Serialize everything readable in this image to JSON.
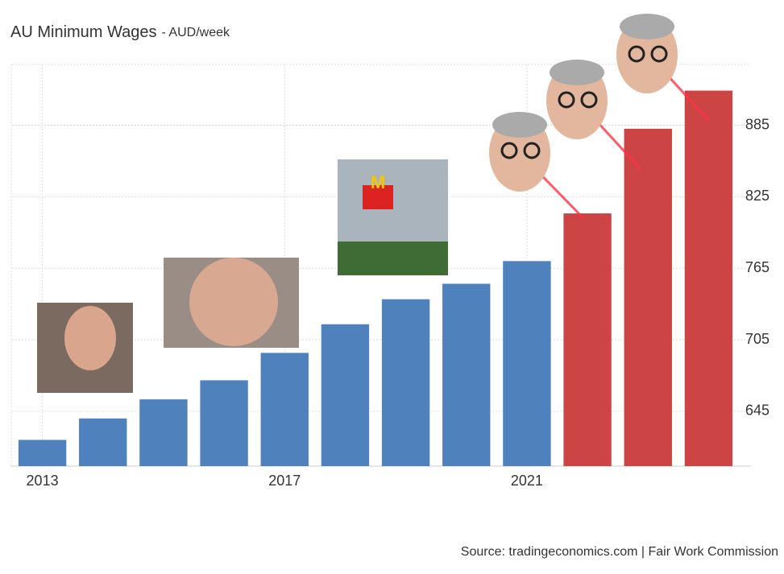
{
  "chart_data": {
    "type": "bar",
    "title": "AU Minimum Wages",
    "subtitle": "- AUD/week",
    "source": "Source: tradingeconomics.com | Fair Work Commission",
    "categories": [
      "2013",
      null,
      null,
      null,
      "2017",
      null,
      null,
      null,
      "2021",
      null,
      null,
      null
    ],
    "values": [
      621,
      639,
      655,
      671,
      694,
      718,
      739,
      752,
      771,
      811,
      882,
      914
    ],
    "colors": [
      "#4f81bd",
      "#4f81bd",
      "#4f81bd",
      "#4f81bd",
      "#4f81bd",
      "#4f81bd",
      "#4f81bd",
      "#4f81bd",
      "#4f81bd",
      "#cc4444",
      "#cc4444",
      "#cc4444"
    ],
    "ylim": [
      599,
      936
    ],
    "yticks": [
      645,
      705,
      765,
      825,
      885
    ],
    "grid": true
  }
}
